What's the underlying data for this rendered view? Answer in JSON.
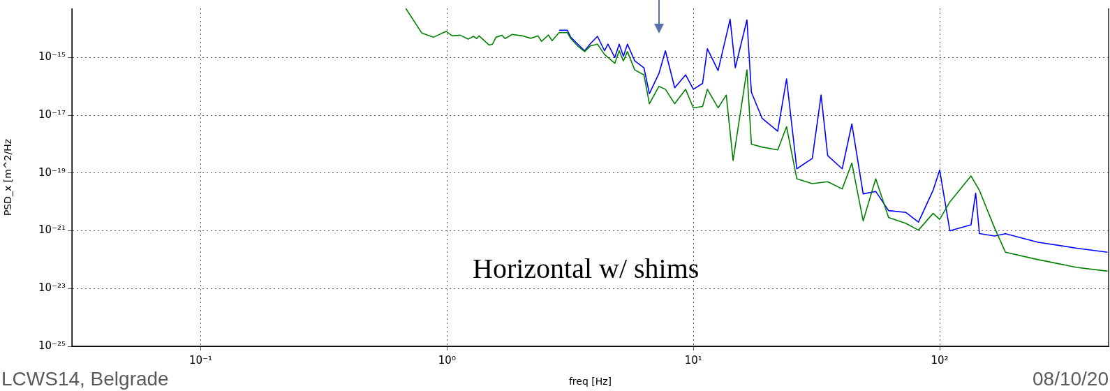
{
  "chart_data": {
    "type": "line",
    "xlabel": "freq [Hz]",
    "ylabel": "PSD_x [m^2/Hz",
    "annotations": [
      "Horizontal w/ shims",
      "LCWS14, Belgrade",
      "08/10/20"
    ],
    "log": "xy",
    "grid": true,
    "legend": false,
    "marker": "none",
    "line_style": "solid",
    "xlim": [
      0.03,
      485
    ],
    "ylim": [
      1e-25,
      5e-14
    ],
    "xticks": [
      {
        "value": 0.1,
        "label": "10⁻¹"
      },
      {
        "value": 1,
        "label": "10⁰"
      },
      {
        "value": 10,
        "label": "10¹"
      },
      {
        "value": 100,
        "label": "10²"
      }
    ],
    "yticks": [
      {
        "value": 1e-25,
        "label": "10⁻²⁵"
      },
      {
        "value": 1e-23,
        "label": "10⁻²³"
      },
      {
        "value": 1e-21,
        "label": "10⁻²¹"
      },
      {
        "value": 1e-19,
        "label": "10⁻¹⁹"
      },
      {
        "value": 1e-17,
        "label": "10⁻¹⁷"
      },
      {
        "value": 1e-15,
        "label": "10⁻¹⁵"
      }
    ],
    "series": [
      {
        "color": "#0000ff",
        "x": [
          2.85,
          3.08,
          3.18,
          3.39,
          3.62,
          3.82,
          4.08,
          4.36,
          4.5,
          4.8,
          5.0,
          5.2,
          5.4,
          5.78,
          6.3,
          6.63,
          7.25,
          7.7,
          8.4,
          9.3,
          10.0,
          10.9,
          11.4,
          12.6,
          14.1,
          14.8,
          16.5,
          17.2,
          19.0,
          22.0,
          23.9,
          26.3,
          30.4,
          33.0,
          35.1,
          40.2,
          44.0,
          48.9,
          55.0,
          62.0,
          73,
          82,
          94,
          100,
          110,
          134,
          140,
          145,
          167,
          185,
          251,
          360,
          480
        ],
        "values": [
          8.7e-15,
          8.7e-15,
          5e-15,
          2.9e-15,
          1.7e-15,
          3e-15,
          5.4e-15,
          1.7e-15,
          2.9e-15,
          1e-15,
          2.9e-15,
          1.1e-15,
          2.9e-15,
          7.6e-16,
          4.4e-16,
          5.6e-17,
          2.8e-16,
          1.7e-15,
          8.9e-17,
          2.5e-16,
          7.9e-17,
          1.26e-16,
          2e-15,
          3.5e-16,
          2.1e-14,
          4.4e-16,
          2e-14,
          6.3e-17,
          7.9e-18,
          2.8e-18,
          1.8e-16,
          1.4e-19,
          3.2e-19,
          5e-17,
          4e-19,
          1.4e-19,
          5e-18,
          1.9e-20,
          2.3e-20,
          5e-21,
          4.3e-21,
          2e-21,
          2.5e-20,
          1.26e-19,
          1e-21,
          1.6e-21,
          2e-20,
          8e-22,
          6.6e-22,
          7.9e-22,
          4e-22,
          2.5e-22,
          1.8e-22
        ]
      },
      {
        "color": "#008000",
        "x": [
          0.68,
          0.79,
          0.88,
          0.99,
          1.05,
          1.13,
          1.22,
          1.28,
          1.32,
          1.35,
          1.48,
          1.53,
          1.58,
          1.67,
          1.72,
          1.84,
          2.02,
          2.19,
          2.34,
          2.42,
          2.58,
          2.67,
          2.85,
          3.08,
          3.18,
          3.39,
          3.62,
          3.82,
          4.08,
          4.36,
          4.8,
          5.0,
          5.2,
          5.4,
          5.78,
          6.3,
          6.63,
          7.25,
          7.7,
          8.4,
          9.3,
          10.0,
          10.9,
          11.4,
          12.6,
          13.6,
          14.5,
          16.5,
          17.2,
          19.0,
          22.0,
          23.9,
          26.3,
          30.4,
          35.1,
          40.2,
          44.0,
          48.9,
          55.0,
          62.0,
          73,
          82,
          94,
          100,
          110,
          134,
          145,
          167,
          185,
          251,
          360,
          480
        ],
        "values": [
          5e-14,
          7e-15,
          5e-15,
          8e-15,
          5.6e-15,
          5.9e-15,
          4.3e-15,
          5.4e-15,
          4.5e-15,
          5.6e-15,
          2.7e-15,
          2.9e-15,
          5e-15,
          5.9e-15,
          4.5e-15,
          6.3e-15,
          5.6e-15,
          4.6e-15,
          5.6e-15,
          3.6e-15,
          6e-15,
          3.8e-15,
          7.2e-15,
          7.2e-15,
          4.5e-15,
          2.5e-15,
          1.6e-15,
          2.5e-15,
          2.9e-15,
          1.26e-15,
          6.3e-16,
          1.7e-15,
          7.6e-16,
          1.6e-15,
          3.7e-16,
          2.5e-16,
          2.5e-17,
          1e-16,
          7.9e-17,
          2.5e-17,
          7.9e-17,
          1.8e-17,
          2e-17,
          7.9e-17,
          1.8e-17,
          5e-17,
          2.7e-19,
          3.7e-16,
          1e-18,
          7.9e-19,
          6.3e-19,
          4e-18,
          6.3e-20,
          4.3e-20,
          5e-20,
          2.8e-20,
          2.2e-19,
          2.2e-21,
          6.3e-20,
          2.9e-21,
          1.8e-21,
          1.05e-21,
          4e-21,
          2.5e-21,
          1e-20,
          7.9e-20,
          2.5e-20,
          1.26e-21,
          1.8e-22,
          1e-22,
          5.4e-23,
          4e-23
        ]
      }
    ]
  }
}
